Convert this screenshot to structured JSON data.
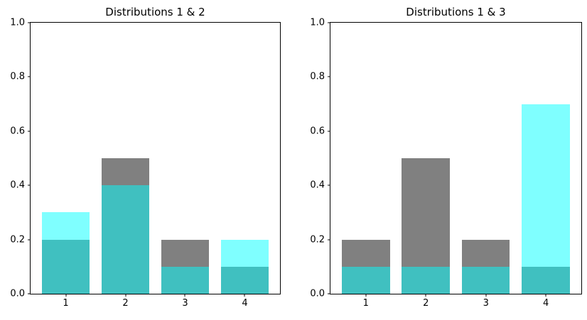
{
  "figure": {
    "background_color": "#ffffff",
    "spine_color": "#000000",
    "text_color": "#000000"
  },
  "derived_colors": {
    "gray_bar": "#808080",
    "cyan_over_white": "#80ffff",
    "cyan_over_gray_overlap": "#40bfbf"
  },
  "chart_data": [
    {
      "type": "bar",
      "title": "Distributions 1 & 2",
      "categories": [
        1,
        2,
        3,
        4
      ],
      "series": [
        {
          "name": "Distribution 1",
          "color": "#808080",
          "alpha": 1.0,
          "values": [
            0.2,
            0.5,
            0.2,
            0.1
          ]
        },
        {
          "name": "Distribution 2",
          "color": "#00ffff",
          "alpha": 0.5,
          "values": [
            0.3,
            0.4,
            0.1,
            0.2
          ]
        }
      ],
      "bar_style": "overlapping",
      "bar_width": 0.8,
      "xlim": [
        0.41,
        4.59
      ],
      "ylim": [
        0.0,
        1.0
      ],
      "yticks": [
        0.0,
        0.2,
        0.4,
        0.6,
        0.8,
        1.0
      ],
      "xticks": [
        1,
        2,
        3,
        4
      ],
      "xlabel": "",
      "ylabel": "",
      "grid": false,
      "legend": "none"
    },
    {
      "type": "bar",
      "title": "Distributions 1 & 3",
      "categories": [
        1,
        2,
        3,
        4
      ],
      "series": [
        {
          "name": "Distribution 1",
          "color": "#808080",
          "alpha": 1.0,
          "values": [
            0.2,
            0.5,
            0.2,
            0.1
          ]
        },
        {
          "name": "Distribution 3",
          "color": "#00ffff",
          "alpha": 0.5,
          "values": [
            0.1,
            0.1,
            0.1,
            0.7
          ]
        }
      ],
      "bar_style": "overlapping",
      "bar_width": 0.8,
      "xlim": [
        0.41,
        4.59
      ],
      "ylim": [
        0.0,
        1.0
      ],
      "yticks": [
        0.0,
        0.2,
        0.4,
        0.6,
        0.8,
        1.0
      ],
      "xticks": [
        1,
        2,
        3,
        4
      ],
      "xlabel": "",
      "ylabel": "",
      "grid": false,
      "legend": "none"
    }
  ]
}
